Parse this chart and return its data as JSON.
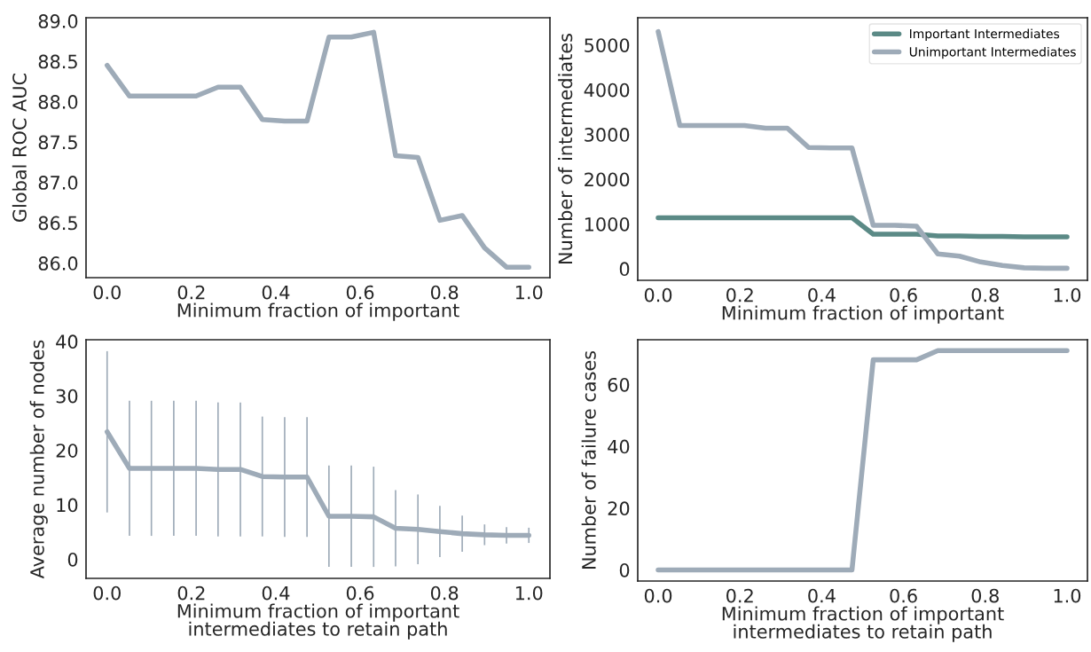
{
  "chart_data": [
    {
      "type": "line",
      "ylabel": "Global ROC AUC",
      "xlabel": "Minimum fraction of important",
      "xlim": [
        -0.05,
        1.05
      ],
      "xticks": [
        {
          "value": 0,
          "label": "0.0"
        },
        {
          "value": 0.2,
          "label": "0.2"
        },
        {
          "value": 0.4,
          "label": "0.4"
        },
        {
          "value": 0.6,
          "label": "0.6"
        },
        {
          "value": 0.8,
          "label": "0.8"
        },
        {
          "value": 1,
          "label": "1.0"
        }
      ],
      "ylim": [
        85.82,
        89.04
      ],
      "yticks": [
        {
          "value": 86,
          "label": "86.0"
        },
        {
          "value": 86.5,
          "label": "86.5"
        },
        {
          "value": 87,
          "label": "87.0"
        },
        {
          "value": 87.5,
          "label": "87.5"
        },
        {
          "value": 88,
          "label": "88.0"
        },
        {
          "value": 88.5,
          "label": "88.5"
        },
        {
          "value": 89,
          "label": "89.0"
        }
      ],
      "grid": false,
      "x": [
        0,
        0.053,
        0.105,
        0.158,
        0.211,
        0.263,
        0.316,
        0.368,
        0.421,
        0.474,
        0.526,
        0.579,
        0.632,
        0.684,
        0.737,
        0.789,
        0.842,
        0.895,
        0.947,
        1
      ],
      "series": [
        {
          "color": "#9eabb8",
          "values": [
            88.45,
            88.07,
            88.07,
            88.07,
            88.07,
            88.18,
            88.18,
            87.78,
            87.76,
            87.76,
            88.8,
            88.8,
            88.86,
            87.33,
            87.31,
            86.53,
            86.59,
            86.19,
            85.95,
            85.95
          ]
        }
      ]
    },
    {
      "type": "line",
      "ylabel": "Number of intermediates",
      "xlabel": "Minimum fraction of important",
      "xlim": [
        -0.05,
        1.05
      ],
      "xticks": [
        {
          "value": 0,
          "label": "0.0"
        },
        {
          "value": 0.2,
          "label": "0.2"
        },
        {
          "value": 0.4,
          "label": "0.4"
        },
        {
          "value": 0.6,
          "label": "0.6"
        },
        {
          "value": 0.8,
          "label": "0.8"
        },
        {
          "value": 1,
          "label": "1.0"
        }
      ],
      "ylim": [
        -260,
        5610
      ],
      "yticks": [
        0,
        1000,
        2000,
        3000,
        4000,
        5000
      ],
      "grid": false,
      "legend": "top right",
      "x": [
        0,
        0.053,
        0.105,
        0.158,
        0.211,
        0.263,
        0.316,
        0.368,
        0.421,
        0.474,
        0.526,
        0.579,
        0.632,
        0.684,
        0.737,
        0.789,
        0.842,
        0.895,
        0.947,
        1
      ],
      "series": [
        {
          "name": "Important Intermediates",
          "color": "#5b8a86",
          "values": [
            1140,
            1140,
            1140,
            1140,
            1140,
            1140,
            1140,
            1140,
            1140,
            1140,
            770,
            770,
            770,
            730,
            730,
            720,
            720,
            710,
            710,
            710
          ]
        },
        {
          "name": "Unimportant Intermediates",
          "color": "#9eabb8",
          "values": [
            5300,
            3200,
            3200,
            3200,
            3200,
            3140,
            3140,
            2710,
            2700,
            2700,
            970,
            970,
            950,
            330,
            280,
            150,
            70,
            20,
            10,
            10
          ]
        }
      ]
    },
    {
      "type": "line",
      "ylabel": "Average number of nodes",
      "xlabel": "Minimum fraction of important\nintermediates to retain path",
      "xlim": [
        -0.05,
        1.05
      ],
      "xticks": [
        {
          "value": 0,
          "label": "0.0"
        },
        {
          "value": 0.2,
          "label": "0.2"
        },
        {
          "value": 0.4,
          "label": "0.4"
        },
        {
          "value": 0.6,
          "label": "0.6"
        },
        {
          "value": 0.8,
          "label": "0.8"
        },
        {
          "value": 1,
          "label": "1.0"
        }
      ],
      "ylim": [
        -3.5,
        40.3
      ],
      "yticks": [
        0,
        10,
        20,
        30,
        40
      ],
      "grid": false,
      "x": [
        0,
        0.053,
        0.105,
        0.158,
        0.211,
        0.263,
        0.316,
        0.368,
        0.421,
        0.474,
        0.526,
        0.579,
        0.632,
        0.684,
        0.737,
        0.789,
        0.842,
        0.895,
        0.947,
        1
      ],
      "series": [
        {
          "color": "#9eabb8",
          "values": [
            23.4,
            16.7,
            16.7,
            16.7,
            16.7,
            16.5,
            16.5,
            15.2,
            15.1,
            15.1,
            7.9,
            7.9,
            7.8,
            5.7,
            5.5,
            5.1,
            4.7,
            4.5,
            4.4,
            4.4
          ],
          "errors": [
            14.8,
            12.4,
            12.4,
            12.4,
            12.4,
            12.3,
            12.3,
            11.0,
            11.0,
            11.0,
            9.3,
            9.3,
            9.2,
            7.0,
            6.4,
            4.7,
            3.3,
            1.9,
            1.5,
            1.4
          ]
        }
      ]
    },
    {
      "type": "line",
      "ylabel": "Number of failure cases",
      "xlabel": "Minimum fraction of important\nintermediates to retain path",
      "xlim": [
        -0.05,
        1.05
      ],
      "xticks": [
        {
          "value": 0,
          "label": "0.0"
        },
        {
          "value": 0.2,
          "label": "0.2"
        },
        {
          "value": 0.4,
          "label": "0.4"
        },
        {
          "value": 0.6,
          "label": "0.6"
        },
        {
          "value": 0.8,
          "label": "0.8"
        },
        {
          "value": 1,
          "label": "1.0"
        }
      ],
      "ylim": [
        -3.6,
        74.5
      ],
      "yticks": [
        0,
        20,
        40,
        60
      ],
      "grid": false,
      "x": [
        0,
        0.053,
        0.105,
        0.158,
        0.211,
        0.263,
        0.316,
        0.368,
        0.421,
        0.474,
        0.526,
        0.579,
        0.632,
        0.684,
        0.737,
        0.789,
        0.842,
        0.895,
        0.947,
        1
      ],
      "series": [
        {
          "color": "#9eabb8",
          "values": [
            0,
            0,
            0,
            0,
            0,
            0,
            0,
            0,
            0,
            0,
            68,
            68,
            68,
            71,
            71,
            71,
            71,
            71,
            71,
            71
          ]
        }
      ]
    }
  ]
}
